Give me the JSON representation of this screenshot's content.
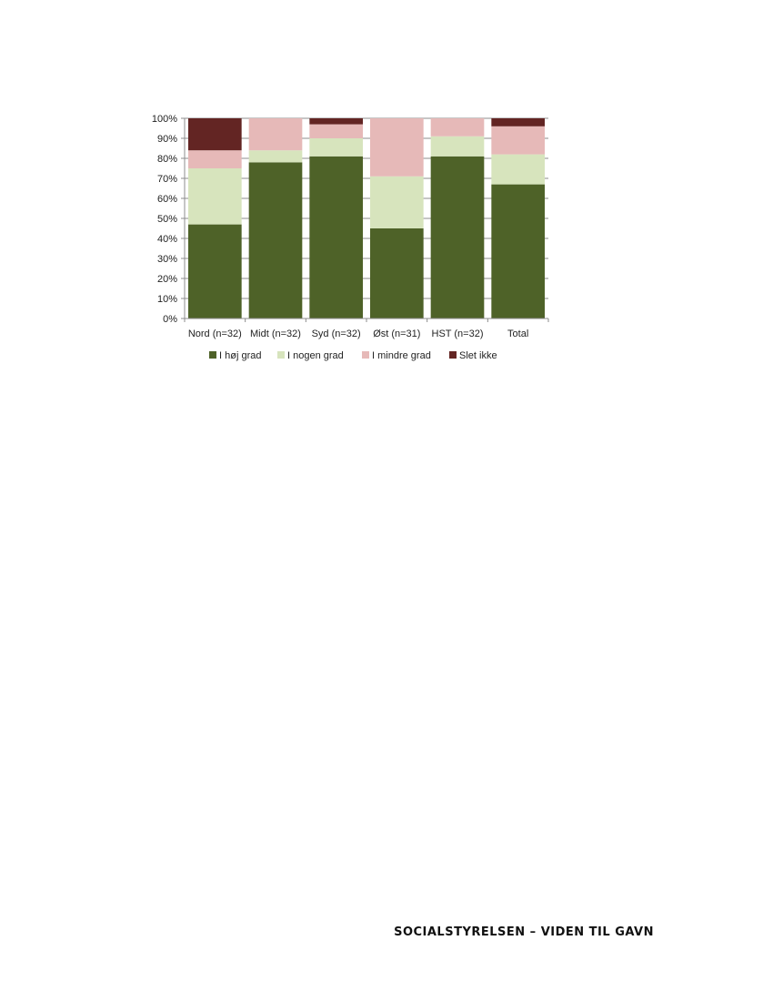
{
  "chart_data": {
    "type": "bar",
    "stacked": true,
    "categories": [
      "Nord (n=32)",
      "Midt (n=32)",
      "Syd (n=32)",
      "Øst (n=31)",
      "HST (n=32)",
      "Total"
    ],
    "series": [
      {
        "name": "I høj grad",
        "color": "#4e6228",
        "values": [
          47,
          78,
          81,
          45,
          81,
          67
        ]
      },
      {
        "name": "I nogen grad",
        "color": "#d7e4bd",
        "values": [
          28,
          6,
          9,
          26,
          10,
          15
        ]
      },
      {
        "name": "I mindre grad",
        "color": "#e6b9b8",
        "values": [
          9,
          16,
          7,
          29,
          9,
          14
        ]
      },
      {
        "name": "Slet ikke",
        "color": "#632523",
        "values": [
          16,
          0,
          3,
          0,
          0,
          4
        ]
      }
    ],
    "y_ticks": [
      "0%",
      "10%",
      "20%",
      "30%",
      "40%",
      "50%",
      "60%",
      "70%",
      "80%",
      "90%",
      "100%"
    ],
    "ylim": [
      0,
      100
    ],
    "grid": true,
    "legend_position": "bottom"
  },
  "footer": {
    "text": "SOCIALSTYRELSEN – VIDEN TIL GAVN"
  }
}
